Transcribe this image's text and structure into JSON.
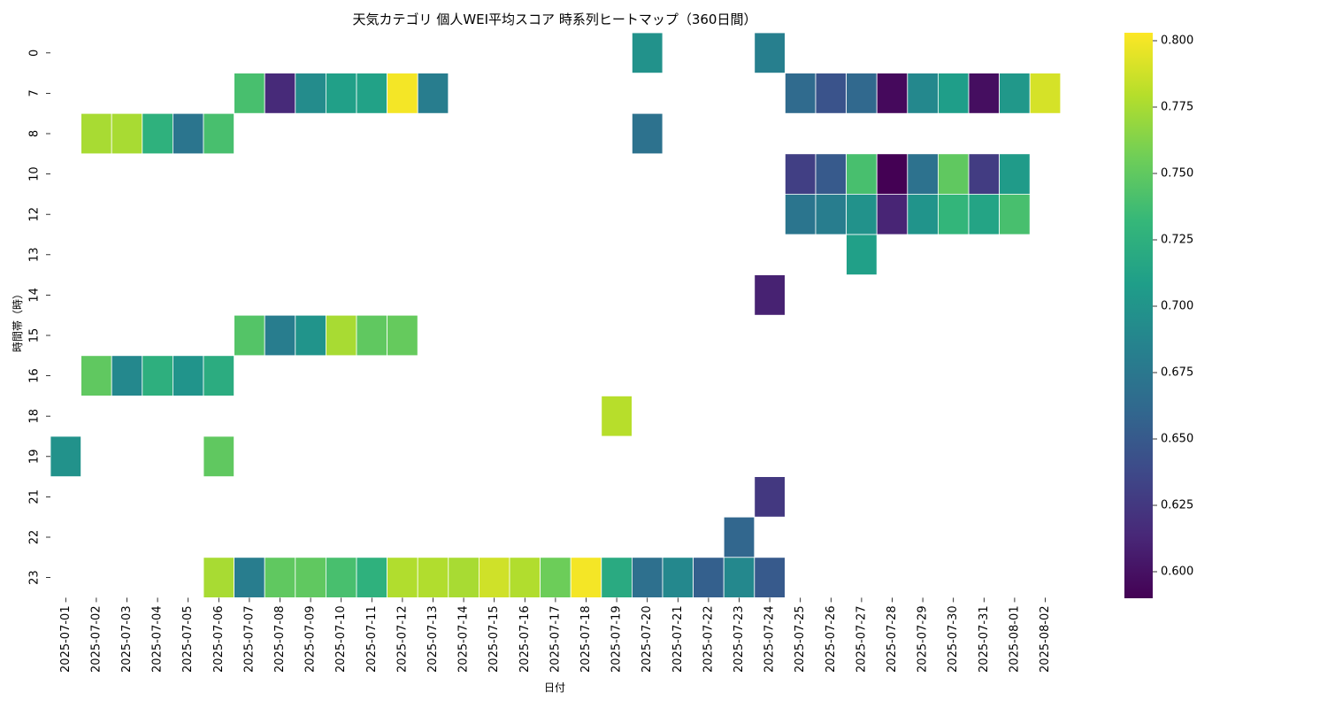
{
  "chart_data": {
    "type": "heatmap",
    "title": "天気カテゴリ 個人WEI平均スコア 時系列ヒートマップ（360日間）",
    "xlabel": "日付",
    "ylabel": "時間帯（時）",
    "x": [
      "2025-07-01",
      "2025-07-02",
      "2025-07-03",
      "2025-07-04",
      "2025-07-05",
      "2025-07-06",
      "2025-07-07",
      "2025-07-08",
      "2025-07-09",
      "2025-07-10",
      "2025-07-11",
      "2025-07-12",
      "2025-07-13",
      "2025-07-14",
      "2025-07-15",
      "2025-07-16",
      "2025-07-17",
      "2025-07-18",
      "2025-07-19",
      "2025-07-20",
      "2025-07-21",
      "2025-07-22",
      "2025-07-23",
      "2025-07-24",
      "2025-07-25",
      "2025-07-26",
      "2025-07-27",
      "2025-07-28",
      "2025-07-29",
      "2025-07-30",
      "2025-07-31",
      "2025-08-01",
      "2025-08-02"
    ],
    "y": [
      "0",
      "7",
      "8",
      "10",
      "12",
      "13",
      "14",
      "15",
      "16",
      "18",
      "19",
      "21",
      "22",
      "23"
    ],
    "colormap": "viridis",
    "colorbar": {
      "min": 0.59,
      "max": 0.803,
      "ticks": [
        "0.600",
        "0.625",
        "0.650",
        "0.675",
        "0.700",
        "0.725",
        "0.750",
        "0.775",
        "0.800"
      ]
    },
    "cells": [
      {
        "x": "2025-07-20",
        "y": "0",
        "v": 0.698
      },
      {
        "x": "2025-07-24",
        "y": "0",
        "v": 0.682
      },
      {
        "x": "2025-07-07",
        "y": "7",
        "v": 0.74
      },
      {
        "x": "2025-07-08",
        "y": "7",
        "v": 0.615
      },
      {
        "x": "2025-07-09",
        "y": "7",
        "v": 0.693
      },
      {
        "x": "2025-07-10",
        "y": "7",
        "v": 0.71
      },
      {
        "x": "2025-07-11",
        "y": "7",
        "v": 0.712
      },
      {
        "x": "2025-07-12",
        "y": "7",
        "v": 0.8
      },
      {
        "x": "2025-07-13",
        "y": "7",
        "v": 0.68
      },
      {
        "x": "2025-07-25",
        "y": "7",
        "v": 0.664
      },
      {
        "x": "2025-07-26",
        "y": "7",
        "v": 0.645
      },
      {
        "x": "2025-07-27",
        "y": "7",
        "v": 0.662
      },
      {
        "x": "2025-07-28",
        "y": "7",
        "v": 0.595
      },
      {
        "x": "2025-07-29",
        "y": "7",
        "v": 0.69
      },
      {
        "x": "2025-07-30",
        "y": "7",
        "v": 0.708
      },
      {
        "x": "2025-07-31",
        "y": "7",
        "v": 0.598
      },
      {
        "x": "2025-08-01",
        "y": "7",
        "v": 0.703
      },
      {
        "x": "2025-08-02",
        "y": "7",
        "v": 0.79
      },
      {
        "x": "2025-07-02",
        "y": "8",
        "v": 0.775
      },
      {
        "x": "2025-07-03",
        "y": "8",
        "v": 0.775
      },
      {
        "x": "2025-07-04",
        "y": "8",
        "v": 0.726
      },
      {
        "x": "2025-07-05",
        "y": "8",
        "v": 0.673
      },
      {
        "x": "2025-07-06",
        "y": "8",
        "v": 0.74
      },
      {
        "x": "2025-07-20",
        "y": "8",
        "v": 0.67
      },
      {
        "x": "2025-07-25",
        "y": "10",
        "v": 0.63
      },
      {
        "x": "2025-07-26",
        "y": "10",
        "v": 0.65
      },
      {
        "x": "2025-07-27",
        "y": "10",
        "v": 0.74
      },
      {
        "x": "2025-07-28",
        "y": "10",
        "v": 0.59
      },
      {
        "x": "2025-07-29",
        "y": "10",
        "v": 0.67
      },
      {
        "x": "2025-07-30",
        "y": "10",
        "v": 0.75
      },
      {
        "x": "2025-07-31",
        "y": "10",
        "v": 0.628
      },
      {
        "x": "2025-08-01",
        "y": "10",
        "v": 0.706
      },
      {
        "x": "2025-07-25",
        "y": "12",
        "v": 0.673
      },
      {
        "x": "2025-07-26",
        "y": "12",
        "v": 0.68
      },
      {
        "x": "2025-07-27",
        "y": "12",
        "v": 0.698
      },
      {
        "x": "2025-07-28",
        "y": "12",
        "v": 0.612
      },
      {
        "x": "2025-07-29",
        "y": "12",
        "v": 0.7
      },
      {
        "x": "2025-07-30",
        "y": "12",
        "v": 0.73
      },
      {
        "x": "2025-07-31",
        "y": "12",
        "v": 0.714
      },
      {
        "x": "2025-08-01",
        "y": "12",
        "v": 0.74
      },
      {
        "x": "2025-07-27",
        "y": "13",
        "v": 0.71
      },
      {
        "x": "2025-07-24",
        "y": "14",
        "v": 0.61
      },
      {
        "x": "2025-07-07",
        "y": "15",
        "v": 0.745
      },
      {
        "x": "2025-07-08",
        "y": "15",
        "v": 0.68
      },
      {
        "x": "2025-07-09",
        "y": "15",
        "v": 0.7
      },
      {
        "x": "2025-07-10",
        "y": "15",
        "v": 0.775
      },
      {
        "x": "2025-07-11",
        "y": "15",
        "v": 0.75
      },
      {
        "x": "2025-07-12",
        "y": "15",
        "v": 0.752
      },
      {
        "x": "2025-07-02",
        "y": "16",
        "v": 0.75
      },
      {
        "x": "2025-07-03",
        "y": "16",
        "v": 0.69
      },
      {
        "x": "2025-07-04",
        "y": "16",
        "v": 0.724
      },
      {
        "x": "2025-07-05",
        "y": "16",
        "v": 0.7
      },
      {
        "x": "2025-07-06",
        "y": "16",
        "v": 0.722
      },
      {
        "x": "2025-07-19",
        "y": "18",
        "v": 0.78
      },
      {
        "x": "2025-07-01",
        "y": "19",
        "v": 0.698
      },
      {
        "x": "2025-07-06",
        "y": "19",
        "v": 0.75
      },
      {
        "x": "2025-07-24",
        "y": "21",
        "v": 0.625
      },
      {
        "x": "2025-07-23",
        "y": "22",
        "v": 0.66
      },
      {
        "x": "2025-07-06",
        "y": "23",
        "v": 0.775
      },
      {
        "x": "2025-07-07",
        "y": "23",
        "v": 0.68
      },
      {
        "x": "2025-07-08",
        "y": "23",
        "v": 0.75
      },
      {
        "x": "2025-07-09",
        "y": "23",
        "v": 0.75
      },
      {
        "x": "2025-07-10",
        "y": "23",
        "v": 0.74
      },
      {
        "x": "2025-07-11",
        "y": "23",
        "v": 0.726
      },
      {
        "x": "2025-07-12",
        "y": "23",
        "v": 0.778
      },
      {
        "x": "2025-07-13",
        "y": "23",
        "v": 0.778
      },
      {
        "x": "2025-07-14",
        "y": "23",
        "v": 0.775
      },
      {
        "x": "2025-07-15",
        "y": "23",
        "v": 0.788
      },
      {
        "x": "2025-07-16",
        "y": "23",
        "v": 0.778
      },
      {
        "x": "2025-07-17",
        "y": "23",
        "v": 0.755
      },
      {
        "x": "2025-07-18",
        "y": "23",
        "v": 0.8
      },
      {
        "x": "2025-07-19",
        "y": "23",
        "v": 0.72
      },
      {
        "x": "2025-07-20",
        "y": "23",
        "v": 0.668
      },
      {
        "x": "2025-07-21",
        "y": "23",
        "v": 0.69
      },
      {
        "x": "2025-07-22",
        "y": "23",
        "v": 0.655
      },
      {
        "x": "2025-07-23",
        "y": "23",
        "v": 0.69
      },
      {
        "x": "2025-07-24",
        "y": "23",
        "v": 0.65
      }
    ]
  }
}
